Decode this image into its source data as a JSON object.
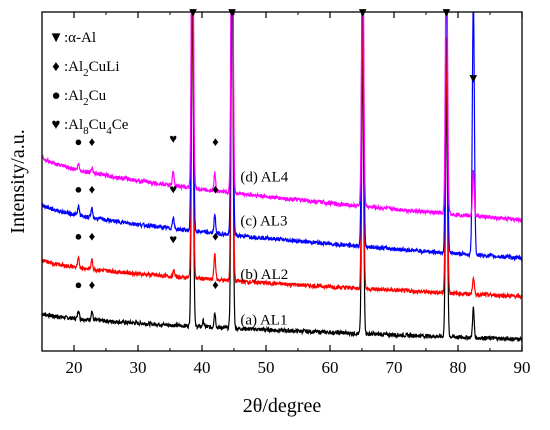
{
  "chart_data": {
    "type": "line",
    "xlabel": "2θ/degree",
    "ylabel": "Intensity/a.u.",
    "xlim": [
      15,
      90
    ],
    "xticks": [
      20,
      30,
      40,
      50,
      60,
      70,
      80,
      90
    ],
    "y_ticks_shown": false,
    "grid": false,
    "legend": {
      "placement": "top-left",
      "entries": [
        {
          "symbol": "▼",
          "prefix": ":α-Al",
          "parts": []
        },
        {
          "symbol": "♦",
          "prefix": ":Al",
          "parts": [
            [
              "2",
              "sub"
            ],
            [
              "CuLi",
              "text"
            ]
          ]
        },
        {
          "symbol": "●",
          "prefix": ":Al",
          "parts": [
            [
              "2",
              "sub"
            ],
            [
              "Cu",
              "text"
            ]
          ]
        },
        {
          "symbol": "♥",
          "prefix": ":Al",
          "parts": [
            [
              "8",
              "sub"
            ],
            [
              "Cu",
              "text"
            ],
            [
              "4",
              "sub"
            ],
            [
              "Ce",
              "text"
            ]
          ]
        }
      ]
    },
    "peaks": {
      "alpha_Al": [
        38.5,
        44.7,
        65.1,
        78.2,
        82.4
      ],
      "Al2CuLi": [
        22.8,
        42.1
      ],
      "Al2Cu": [
        20.7,
        42.0
      ],
      "Al8Cu4Ce": [
        35.5
      ]
    },
    "series": [
      {
        "name": "(a) AL1",
        "color": "#000000",
        "baseline_start": 0.128,
        "baseline_end": 0.04,
        "peaks": [
          [
            20.7,
            0.03
          ],
          [
            22.8,
            0.03
          ],
          [
            38.5,
            1.15
          ],
          [
            40.2,
            0.02
          ],
          [
            42.0,
            0.05
          ],
          [
            44.7,
            1.3
          ],
          [
            65.1,
            0.95
          ],
          [
            78.2,
            0.85
          ],
          [
            82.4,
            0.1
          ]
        ],
        "label_x": 46,
        "label_y": 0.09
      },
      {
        "name": "(b) AL2",
        "color": "#ff0000",
        "baseline_start": 0.31,
        "baseline_end": 0.185,
        "peaks": [
          [
            20.7,
            0.03
          ],
          [
            22.8,
            0.03
          ],
          [
            35.6,
            0.02
          ],
          [
            38.5,
            1.1
          ],
          [
            42.0,
            0.09
          ],
          [
            44.7,
            1.3
          ],
          [
            65.1,
            0.95
          ],
          [
            78.2,
            0.87
          ],
          [
            82.4,
            0.06
          ]
        ],
        "label_x": 46,
        "label_y": 0.245
      },
      {
        "name": "(c) AL3",
        "color": "#0000ff",
        "baseline_start": 0.5,
        "baseline_end": 0.315,
        "peaks": [
          [
            20.7,
            0.03
          ],
          [
            22.8,
            0.03
          ],
          [
            35.5,
            0.04
          ],
          [
            38.5,
            1.15
          ],
          [
            42.0,
            0.06
          ],
          [
            44.7,
            1.3
          ],
          [
            65.1,
            1.1
          ],
          [
            78.2,
            1.0
          ],
          [
            82.4,
            0.87
          ]
        ],
        "label_x": 46,
        "label_y": 0.425
      },
      {
        "name": "(d) AL4",
        "color": "#ff00ff",
        "baseline_start": 0.66,
        "baseline_end": 0.445,
        "peaks": [
          [
            20.7,
            0.02
          ],
          [
            22.8,
            0.02
          ],
          [
            35.5,
            0.05
          ],
          [
            38.5,
            1.15
          ],
          [
            42.0,
            0.06
          ],
          [
            44.7,
            1.25
          ],
          [
            65.1,
            1.0
          ],
          [
            78.2,
            1.0
          ],
          [
            82.4,
            0.16
          ]
        ],
        "label_x": 46,
        "label_y": 0.575
      }
    ],
    "markers": [
      {
        "symbol": "▼",
        "x": 38.6,
        "y": 1.135
      },
      {
        "symbol": "▼",
        "x": 44.7,
        "y": 1.135
      },
      {
        "symbol": "▼",
        "x": 65.1,
        "y": 1.135
      },
      {
        "symbol": "▼",
        "x": 78.2,
        "y": 1.135
      },
      {
        "symbol": "▼",
        "x": 82.4,
        "y": 0.91
      },
      {
        "symbol": "●",
        "x": 20.7,
        "y": 0.695
      },
      {
        "symbol": "♦",
        "x": 22.8,
        "y": 0.695
      },
      {
        "symbol": "♥",
        "x": 35.5,
        "y": 0.705
      },
      {
        "symbol": "♦",
        "x": 42.1,
        "y": 0.695
      },
      {
        "symbol": "●",
        "x": 20.7,
        "y": 0.535
      },
      {
        "symbol": "♦",
        "x": 22.8,
        "y": 0.535
      },
      {
        "symbol": "♥",
        "x": 35.5,
        "y": 0.535
      },
      {
        "symbol": "♦",
        "x": 42.1,
        "y": 0.535
      },
      {
        "symbol": "●",
        "x": 20.7,
        "y": 0.375
      },
      {
        "symbol": "♦",
        "x": 22.8,
        "y": 0.375
      },
      {
        "symbol": "♥",
        "x": 35.5,
        "y": 0.365
      },
      {
        "symbol": "♦",
        "x": 42.1,
        "y": 0.375
      },
      {
        "symbol": "●",
        "x": 20.7,
        "y": 0.21
      },
      {
        "symbol": "♦",
        "x": 22.8,
        "y": 0.21
      },
      {
        "symbol": "♦",
        "x": 42.1,
        "y": 0.21
      }
    ]
  }
}
